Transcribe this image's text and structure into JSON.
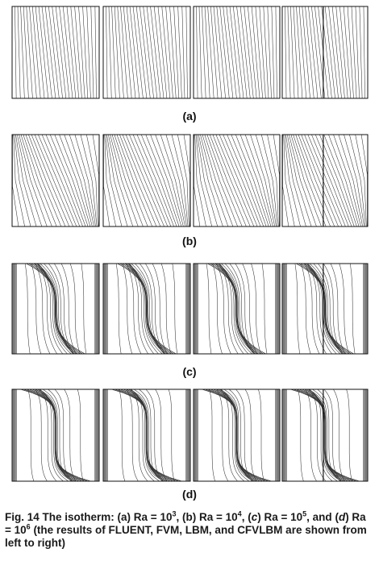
{
  "figure": {
    "rows": [
      {
        "label": "(a)",
        "ra_exponent": 3
      },
      {
        "label": "(b)",
        "ra_exponent": 4
      },
      {
        "label": "(c)",
        "ra_exponent": 5
      },
      {
        "label": "(d)",
        "ra_exponent": 6
      }
    ],
    "methods": [
      "FLUENT",
      "FVM",
      "LBM",
      "CFVLBM"
    ],
    "isotherm_count": 24
  },
  "caption": {
    "prefix": "Fig. 14   The isotherm: ",
    "a_text": "(a) Ra",
    "a_exp": "3",
    "b_text": "(b) Ra",
    "b_exp": "4",
    "c_letter": "c",
    "c_exp": "5",
    "and_text": "and ",
    "d_letter": "d",
    "d_exp": "6",
    "tail": " (the results of FLUENT, FVM, LBM, and CFVLBM are shown from left to right)",
    "base": "10",
    "eq": " = "
  }
}
